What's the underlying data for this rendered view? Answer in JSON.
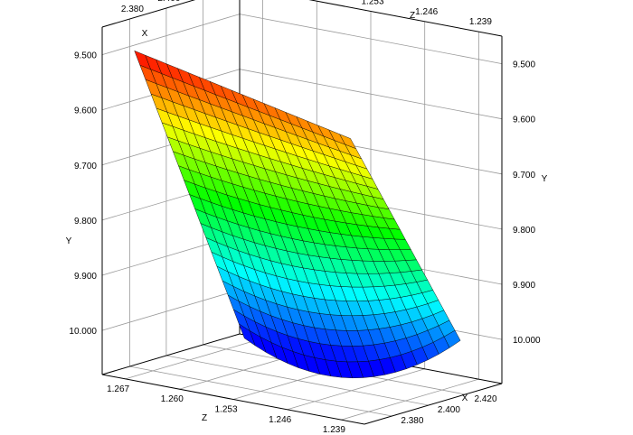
{
  "chart_data": {
    "type": "surface",
    "title": "",
    "xlabel": "X",
    "ylabel": "Y",
    "zlabel": "Z",
    "x_ticks": [
      "2.380",
      "2.400",
      "2.420"
    ],
    "y_ticks": [
      "9.500",
      "9.600",
      "9.700",
      "9.800",
      "9.900",
      "10.000"
    ],
    "z_ticks": [
      "1.267",
      "1.260",
      "1.253",
      "1.246",
      "1.239"
    ],
    "xlim": [
      2.365,
      2.44
    ],
    "zlim": [
      1.236,
      1.27
    ],
    "ylim": [
      9.45,
      10.08
    ],
    "y_axis_inverted": true,
    "grid": true,
    "colormap": [
      "#ff0000",
      "#ffff00",
      "#00ff00",
      "#00ffff",
      "#0000ff"
    ],
    "surface": {
      "x_range": [
        2.37,
        2.43
      ],
      "z_range": [
        1.239,
        1.267
      ],
      "corners": {
        "x2.37_z1.267": 9.49,
        "x2.37_z1.239": 9.575,
        "x2.43_z1.267": 10.07,
        "x2.43_z1.239": 10.0
      },
      "grid_lines": 20
    }
  }
}
